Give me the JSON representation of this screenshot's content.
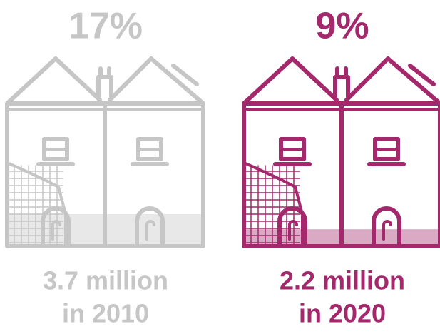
{
  "chart_data": {
    "type": "pictogram",
    "values": [
      17,
      9
    ],
    "value_labels": [
      "17%",
      "9%"
    ],
    "captions": [
      [
        "3.7 million",
        "in 2010"
      ],
      [
        "2.2 million",
        "in 2020"
      ]
    ],
    "colors": [
      "#c6c6c6",
      "#a3286c"
    ],
    "ylim": [
      0,
      100
    ]
  }
}
